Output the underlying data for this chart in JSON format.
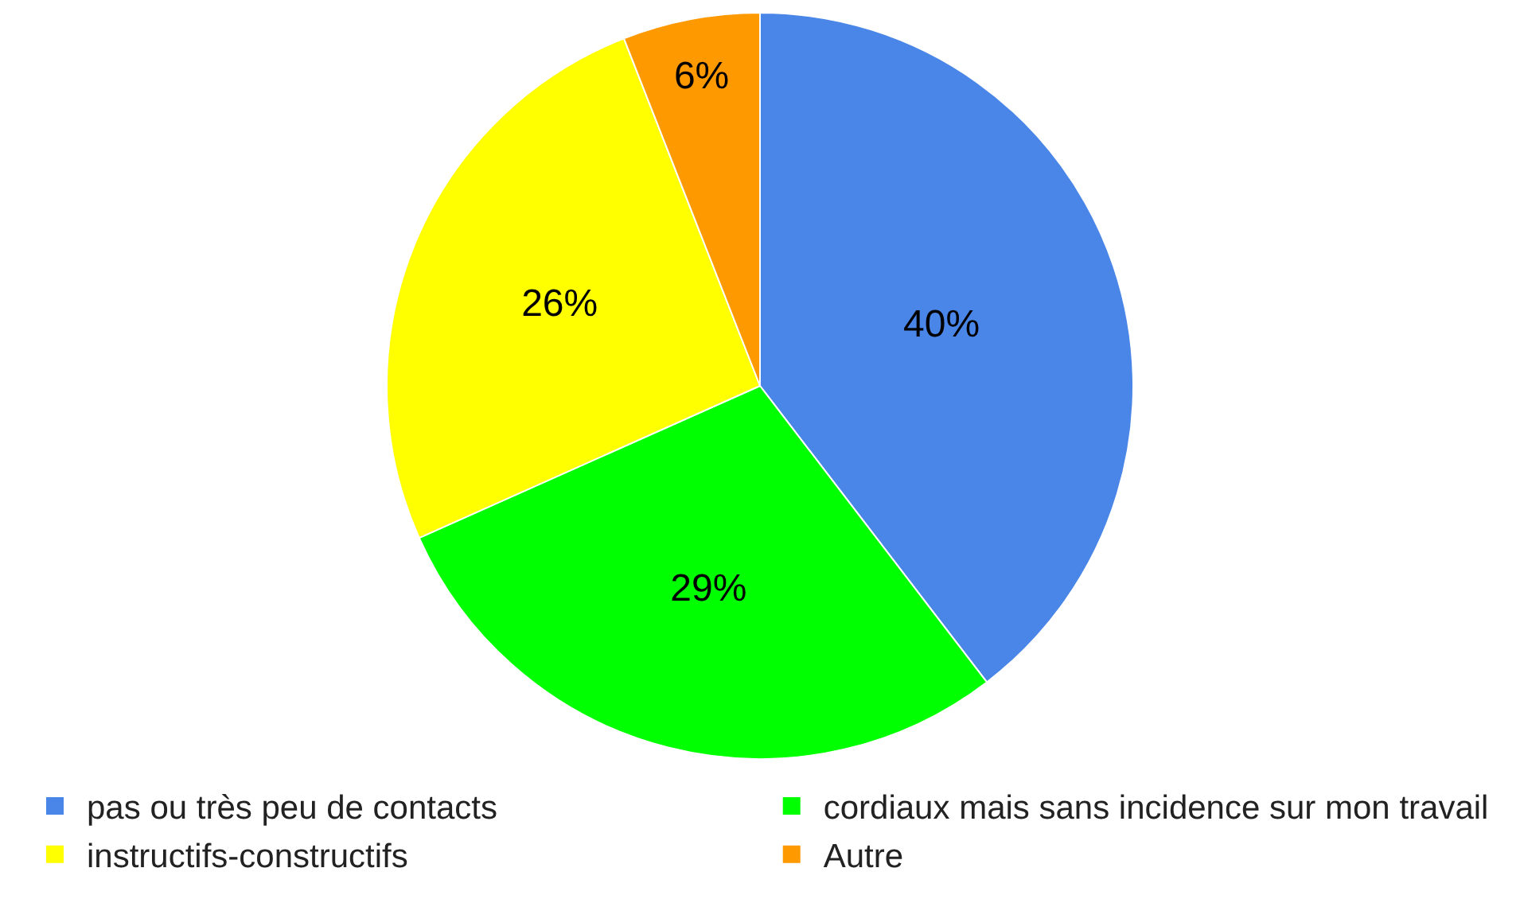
{
  "chart_data": {
    "type": "pie",
    "categories": [
      "pas ou très peu de contacts",
      "cordiaux mais sans incidence sur mon travail",
      "instructifs-constructifs",
      "Autre"
    ],
    "values": [
      40,
      29,
      26,
      6
    ],
    "colors": [
      "#4a86e8",
      "#00ff00",
      "#ffff00",
      "#ff9900"
    ],
    "value_labels": [
      "40%",
      "29%",
      "26%",
      "6%"
    ],
    "legend": "bottom"
  }
}
